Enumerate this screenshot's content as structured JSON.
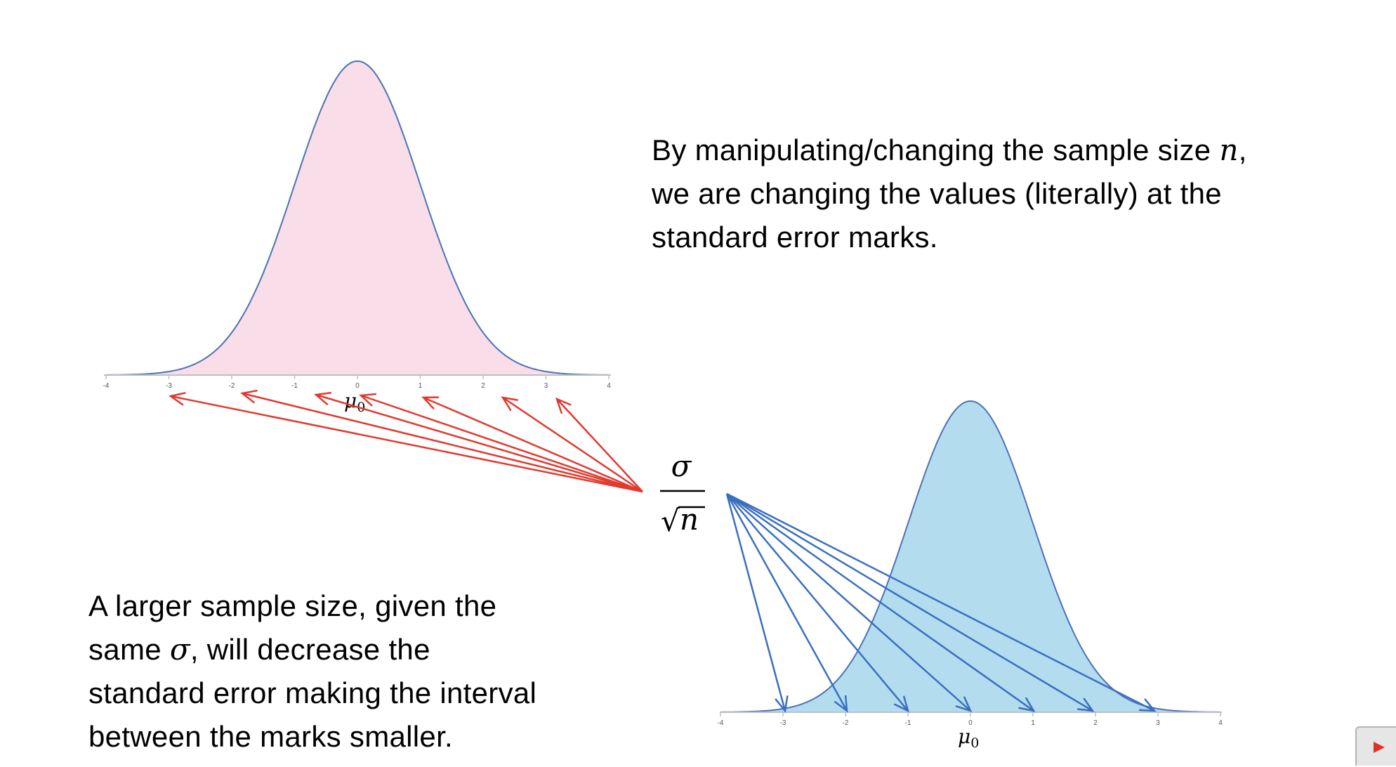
{
  "top_paragraph": {
    "line1_before": "By manipulating/changing the sample size ",
    "line1_symbol": "n",
    "line1_after": ",",
    "line2": "we are changing the values (literally) at the",
    "line3": "standard error marks."
  },
  "bottom_paragraph": {
    "line1": "A larger sample size, given the",
    "line2_before": "same ",
    "line2_symbol": "σ",
    "line2_after": ", will decrease the",
    "line3": "standard error making the interval",
    "line4": "between the marks smaller."
  },
  "formula": {
    "numerator": "σ",
    "radical": "√",
    "radicand": "n"
  },
  "top_curve": {
    "fill": "#f9dde8",
    "stroke": "#4a72b8",
    "ticks": [
      "-4",
      "-3",
      "-2",
      "-1",
      "0",
      "1",
      "2",
      "3",
      "4"
    ],
    "mean_label": "μ",
    "mean_subscript": "0",
    "arrow_color": "#e03a2f"
  },
  "bottom_curve": {
    "fill": "#b4dcef",
    "stroke": "#4a72b8",
    "ticks": [
      "-4",
      "-3",
      "-2",
      "-1",
      "0",
      "1",
      "2",
      "3",
      "4"
    ],
    "mean_label": "μ",
    "mean_subscript": "0",
    "arrow_color": "#3a6fc0"
  },
  "colors": {
    "text": "#000000",
    "axis": "#bfbfbf"
  }
}
